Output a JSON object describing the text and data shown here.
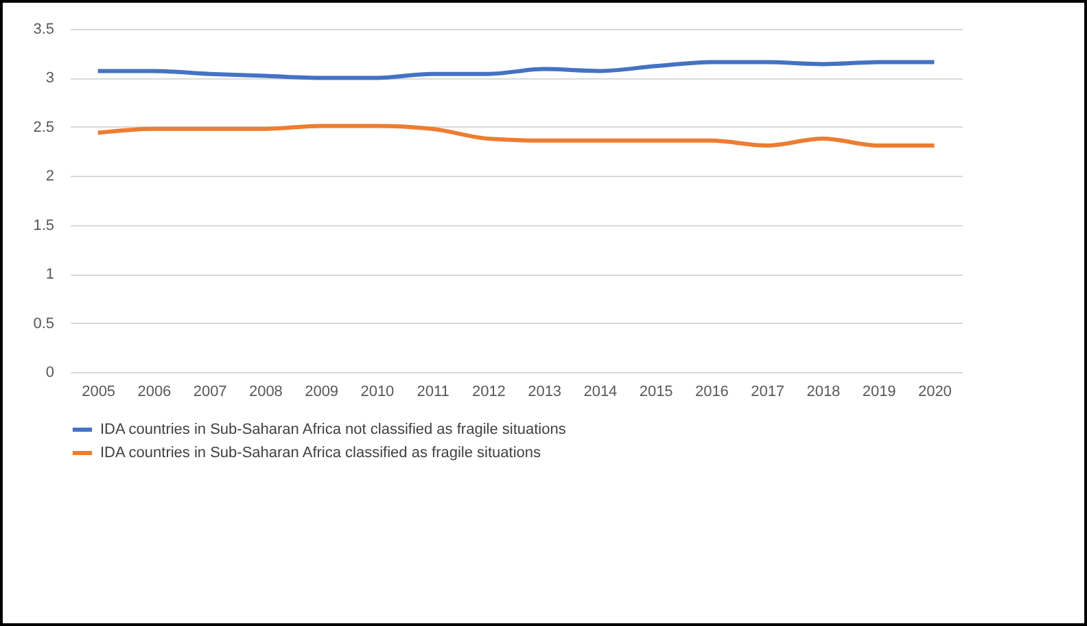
{
  "chart_data": {
    "type": "line",
    "categories": [
      "2005",
      "2006",
      "2007",
      "2008",
      "2009",
      "2010",
      "2011",
      "2012",
      "2013",
      "2014",
      "2015",
      "2016",
      "2017",
      "2018",
      "2019",
      "2020"
    ],
    "series": [
      {
        "name": "IDA countries in Sub-Saharan Africa not classified as fragile situations",
        "color": "#4472c4",
        "values": [
          3.07,
          3.07,
          3.04,
          3.02,
          3.0,
          3.0,
          3.04,
          3.04,
          3.09,
          3.07,
          3.12,
          3.16,
          3.16,
          3.14,
          3.16,
          3.16
        ]
      },
      {
        "name": "IDA countries in Sub-Saharan Africa classified as fragile situations",
        "color": "#ed7d31",
        "values": [
          2.44,
          2.48,
          2.48,
          2.48,
          2.51,
          2.51,
          2.48,
          2.38,
          2.36,
          2.36,
          2.36,
          2.36,
          2.31,
          2.38,
          2.31,
          2.31
        ]
      }
    ],
    "ylim": [
      0,
      3.5
    ],
    "yticks": [
      0,
      0.5,
      1,
      1.5,
      2,
      2.5,
      3,
      3.5
    ],
    "grid": "y",
    "legend": "bottom",
    "line_style": "solid",
    "marker": "none"
  }
}
